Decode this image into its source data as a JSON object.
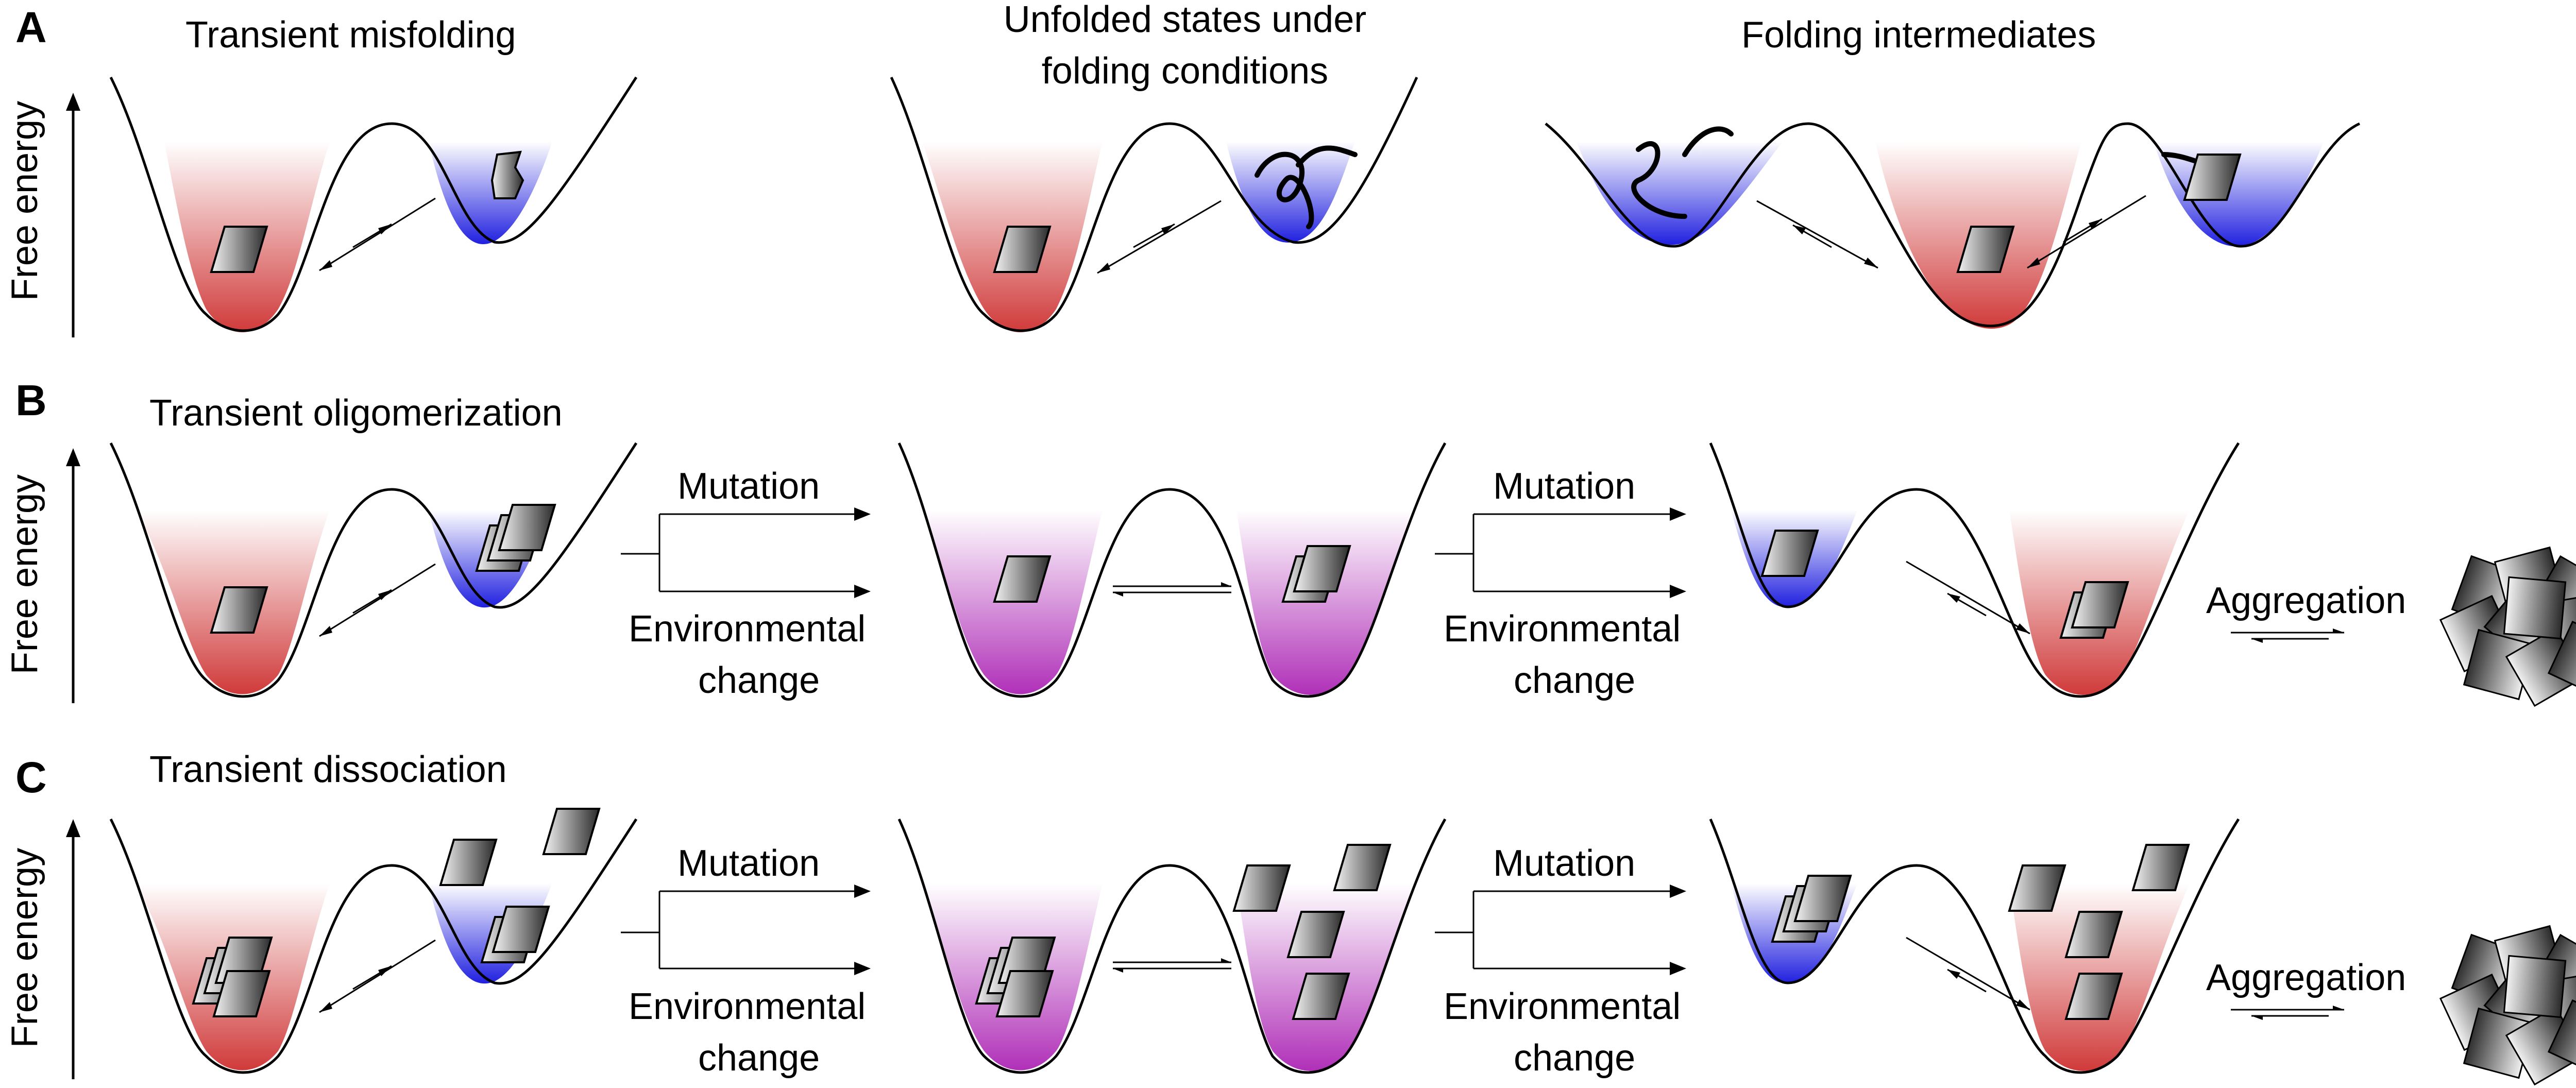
{
  "axis_label": "Free energy",
  "words": {
    "mutation": "Mutation",
    "environmental": "Environmental",
    "change": "change",
    "aggregation": "Aggregation"
  },
  "panels": {
    "A": {
      "letter": "A",
      "titles": [
        "Transient misfolding",
        "Unfolded states under",
        "folding conditions",
        "Folding intermediates"
      ]
    },
    "B": {
      "letter": "B",
      "title": "Transient oligomerization"
    },
    "C": {
      "letter": "C",
      "title": "Transient dissociation"
    }
  },
  "colors": {
    "red": "#d03a3a",
    "blue": "#2020e0",
    "magenta": "#b030b8",
    "line": "#000000",
    "block_dark": "#2a2a2a",
    "block_light": "#f2f2f2"
  }
}
